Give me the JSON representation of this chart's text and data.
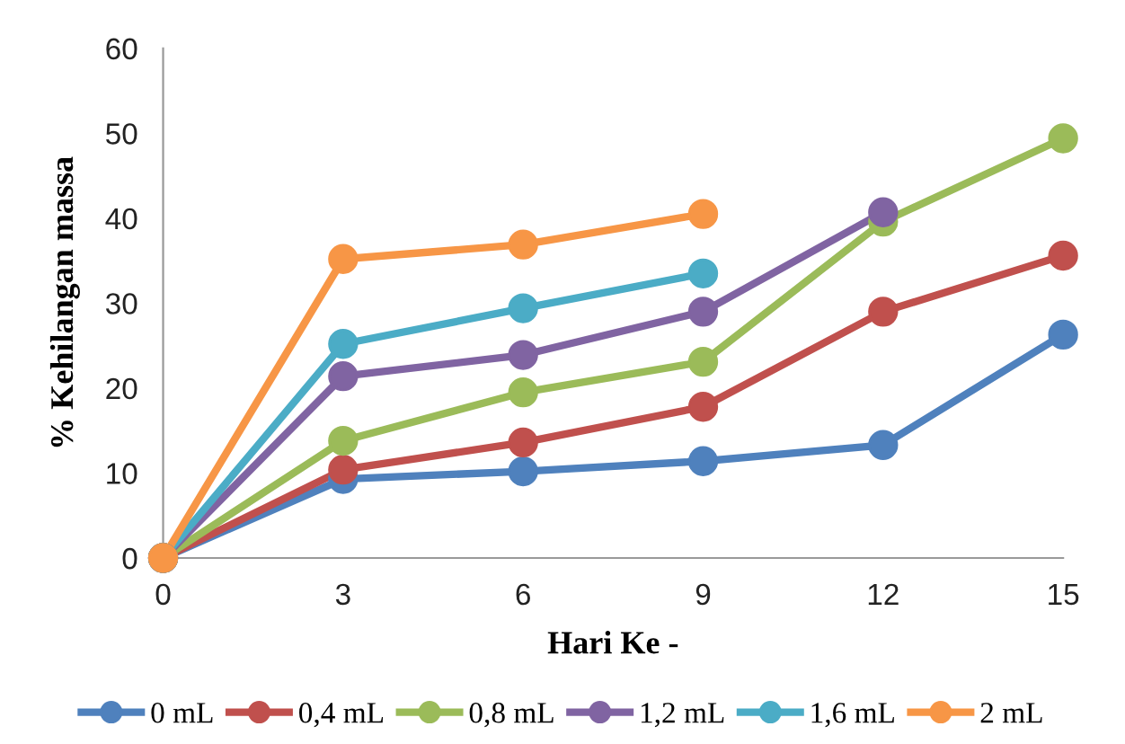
{
  "chart_data": {
    "type": "line",
    "xlabel": "Hari Ke -",
    "ylabel": "% Kehilangan massa",
    "x": [
      0,
      3,
      6,
      9,
      12,
      15
    ],
    "xlim": [
      0,
      15
    ],
    "xticks": [
      0,
      3,
      6,
      9,
      12,
      15
    ],
    "ylim": [
      0,
      60
    ],
    "yticks": [
      0,
      10,
      20,
      30,
      40,
      50,
      60
    ],
    "grid": false,
    "legend": "bottom",
    "marker": "circle",
    "line_style": "solid",
    "series": [
      {
        "name": "0 mL",
        "color": "#4f81bd",
        "values": [
          0,
          9.3,
          10.2,
          11.4,
          13.3,
          26.3
        ]
      },
      {
        "name": "0,4 mL",
        "color": "#c0504d",
        "values": [
          0,
          10.4,
          13.6,
          17.8,
          29,
          35.6
        ]
      },
      {
        "name": "0,8 mL",
        "color": "#9bbb59",
        "values": [
          0,
          13.8,
          19.5,
          23.1,
          39.6,
          49.4
        ]
      },
      {
        "name": "1,2 mL",
        "color": "#8064a2",
        "values": [
          0,
          21.4,
          23.9,
          29,
          40.7,
          null
        ]
      },
      {
        "name": "1,6 mL",
        "color": "#4bacc6",
        "values": [
          0,
          25.2,
          29.4,
          33.5,
          null,
          null
        ]
      },
      {
        "name": "2 mL",
        "color": "#f79646",
        "values": [
          0,
          35.2,
          36.9,
          40.5,
          null,
          null
        ]
      }
    ]
  }
}
